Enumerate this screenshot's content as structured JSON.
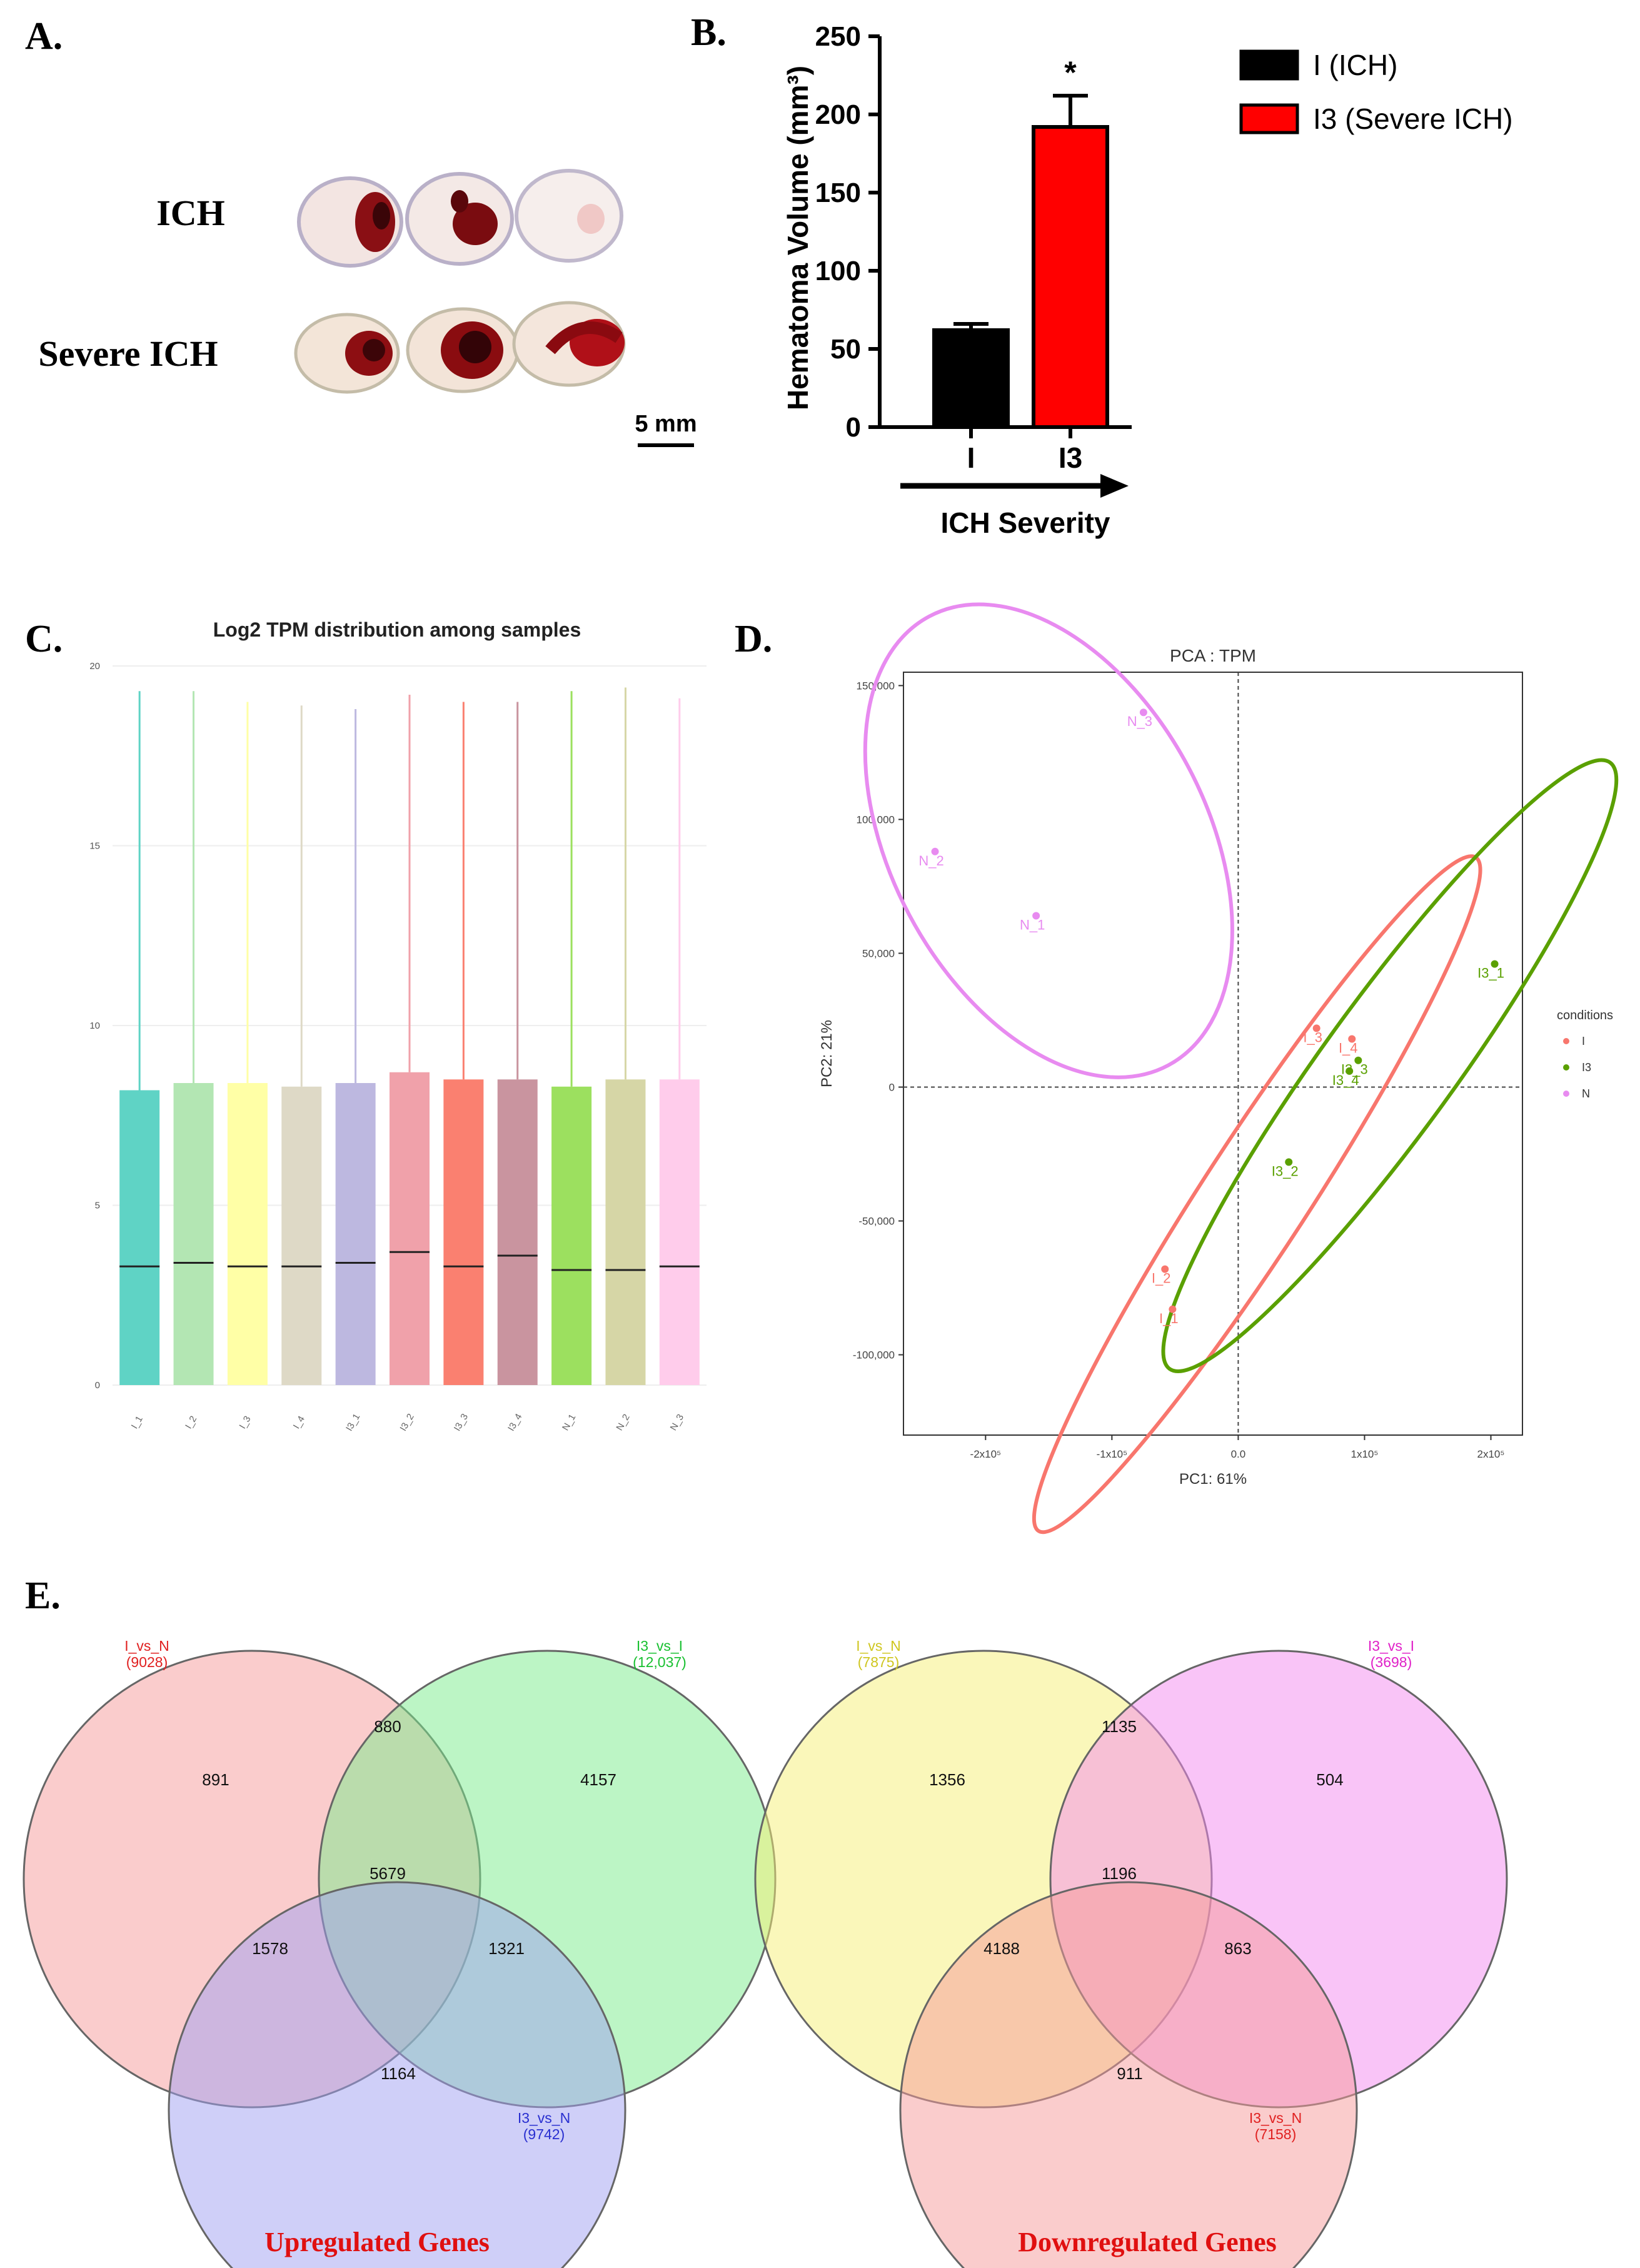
{
  "panels": {
    "a": {
      "letter": "A.",
      "row_labels": [
        "ICH",
        "Severe ICH"
      ],
      "scale_bar": "5 mm"
    },
    "b": {
      "letter": "B.",
      "arrow_label": "ICH Severity"
    },
    "c": {
      "letter": "C."
    },
    "d": {
      "letter": "D.",
      "legend_title": "conditions"
    },
    "e": {
      "letter": "E.",
      "up_title": "Upregulated Genes",
      "down_title": "Downregulated Genes"
    }
  },
  "colors": {
    "bar_i": "#000000",
    "bar_i3": "#ff0000",
    "pca_i": "#f8766d",
    "pca_i3": "#5aa000",
    "pca_n": "#e88bf0",
    "title_red": "#e01010"
  },
  "chart_data": [
    {
      "id": "B",
      "type": "bar",
      "title": "",
      "ylabel": "Hematoma Volume (mm³)",
      "xlabel": "ICH Severity",
      "ylim": [
        0,
        250
      ],
      "yticks": [
        0,
        50,
        100,
        150,
        200,
        250
      ],
      "categories": [
        "I",
        "I3"
      ],
      "values": [
        62,
        192
      ],
      "errors": [
        4,
        20
      ],
      "significance": [
        "",
        "*"
      ],
      "legend": [
        "I (ICH)",
        "I3 (Severe ICH)"
      ]
    },
    {
      "id": "C",
      "type": "box",
      "title": "Log2 TPM distribution among samples",
      "ylim": [
        0,
        20
      ],
      "yticks": [
        0,
        5,
        10,
        15,
        20
      ],
      "categories": [
        "I_1",
        "I_2",
        "I_3",
        "I_4",
        "I3_1",
        "I3_2",
        "I3_3",
        "I3_4",
        "N_1",
        "N_2",
        "N_3"
      ],
      "q3": [
        8.2,
        8.4,
        8.4,
        8.3,
        8.4,
        8.7,
        8.5,
        8.5,
        8.3,
        8.5,
        8.5
      ],
      "median": [
        3.3,
        3.4,
        3.3,
        3.3,
        3.4,
        3.7,
        3.3,
        3.6,
        3.2,
        3.2,
        3.3
      ],
      "max": [
        19.3,
        19.3,
        19.0,
        18.9,
        18.8,
        19.2,
        19.0,
        19.0,
        19.3,
        19.4,
        19.1
      ],
      "colors": [
        "#5fd3c5",
        "#b3e6b3",
        "#ffffa6",
        "#ded9c6",
        "#bdb8e0",
        "#f0a1aa",
        "#fa8070",
        "#c9949f",
        "#9ce05f",
        "#d6d6a6",
        "#ffcceb"
      ]
    },
    {
      "id": "D",
      "type": "scatter",
      "title": "PCA : TPM",
      "xlabel": "PC1: 61%",
      "ylabel": "PC2: 21%",
      "xlim": [
        -265000,
        225000
      ],
      "ylim": [
        -130000,
        155000
      ],
      "xticks": [
        -200000,
        -100000,
        0,
        100000,
        200000
      ],
      "xtick_labels": [
        "-2x10⁵",
        "-1x10⁵",
        "0.0",
        "1x10⁵",
        "2x10⁵"
      ],
      "yticks": [
        -100000,
        -50000,
        0,
        50000,
        100000,
        150000
      ],
      "ytick_labels": [
        "-100,000",
        "-50,000",
        "0",
        "50,000",
        "100,000",
        "150,000"
      ],
      "legend": [
        "I",
        "I3",
        "N"
      ],
      "series": [
        {
          "name": "I",
          "points": [
            {
              "label": "I_1",
              "x": -52000,
              "y": -83000
            },
            {
              "label": "I_2",
              "x": -58000,
              "y": -68000
            },
            {
              "label": "I_3",
              "x": 62000,
              "y": 22000
            },
            {
              "label": "I_4",
              "x": 90000,
              "y": 18000
            }
          ]
        },
        {
          "name": "I3",
          "points": [
            {
              "label": "I3_1",
              "x": 203000,
              "y": 46000
            },
            {
              "label": "I3_2",
              "x": 40000,
              "y": -28000
            },
            {
              "label": "I3_3",
              "x": 95000,
              "y": 10000
            },
            {
              "label": "I3_4",
              "x": 88000,
              "y": 6000
            }
          ]
        },
        {
          "name": "N",
          "points": [
            {
              "label": "N_1",
              "x": -160000,
              "y": 64000
            },
            {
              "label": "N_2",
              "x": -240000,
              "y": 88000
            },
            {
              "label": "N_3",
              "x": -75000,
              "y": 140000
            }
          ]
        }
      ]
    },
    {
      "id": "E-up",
      "type": "venn",
      "title": "Upregulated Genes",
      "sets": [
        {
          "name": "I_vs_N",
          "size": "(9028)"
        },
        {
          "name": "I3_vs_I",
          "size": "(12,037)"
        },
        {
          "name": "I3_vs_N",
          "size": "(9742)"
        }
      ],
      "regions": {
        "a_only": 891,
        "b_only": 4157,
        "c_only": 1164,
        "ab": 880,
        "ac": 1578,
        "bc": 1321,
        "abc": 5679
      }
    },
    {
      "id": "E-down",
      "type": "venn",
      "title": "Downregulated Genes",
      "sets": [
        {
          "name": "I_vs_N",
          "size": "(7875)"
        },
        {
          "name": "I3_vs_I",
          "size": "(3698)"
        },
        {
          "name": "I3_vs_N",
          "size": "(7158)"
        }
      ],
      "regions": {
        "a_only": 1356,
        "b_only": 504,
        "c_only": 911,
        "ab": 1135,
        "ac": 4188,
        "bc": 863,
        "abc": 1196
      }
    }
  ]
}
